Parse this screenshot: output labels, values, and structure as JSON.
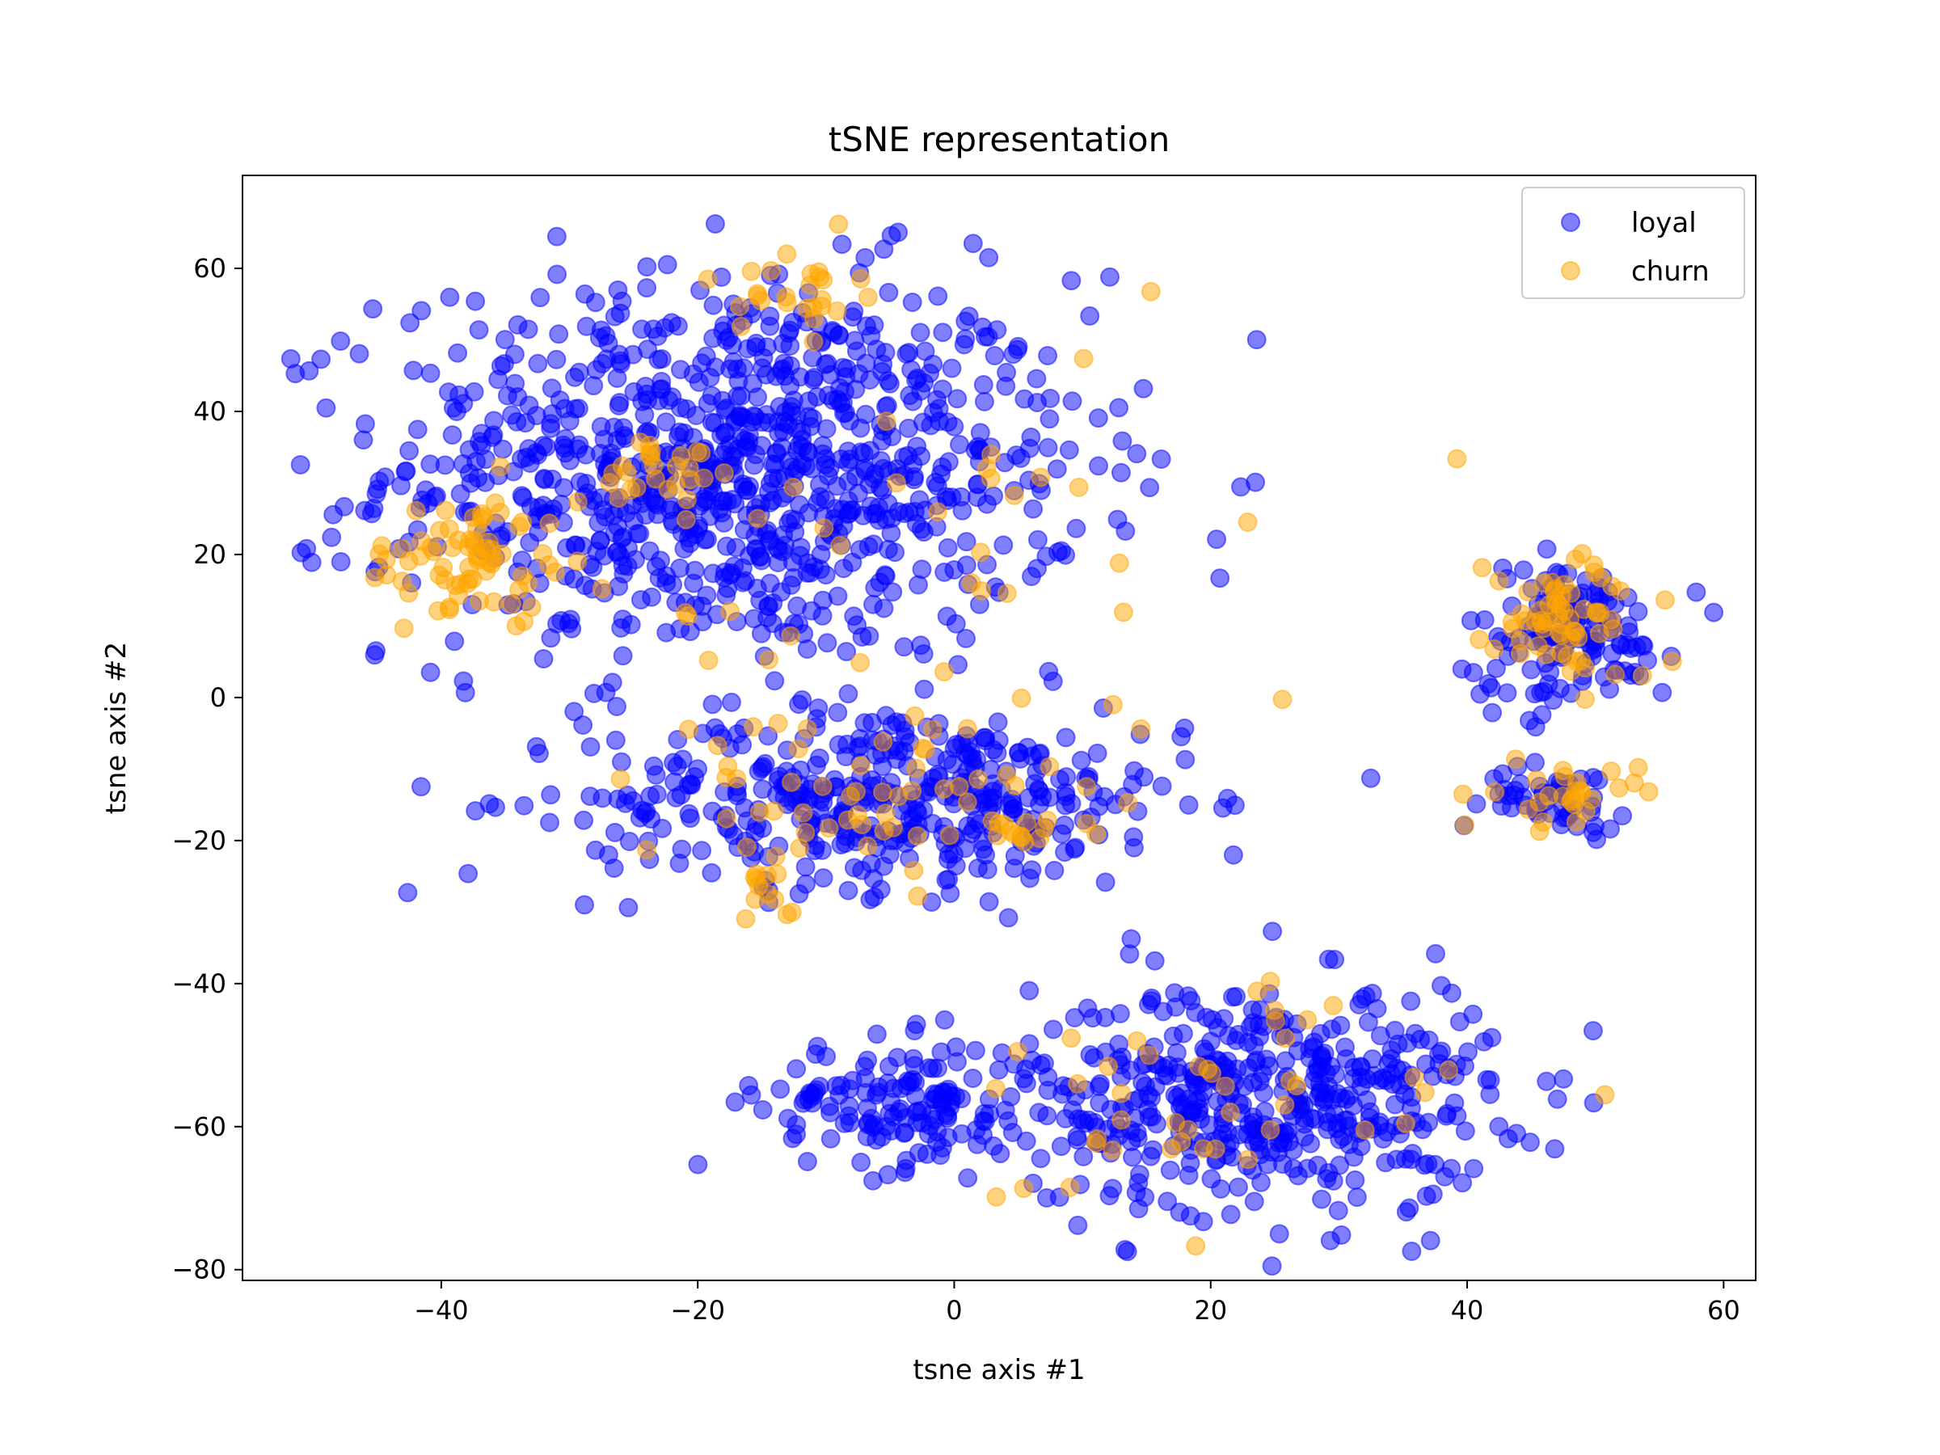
{
  "chart_data": {
    "type": "scatter",
    "title": "tSNE representation",
    "xlabel": "tsne axis #1",
    "ylabel": "tsne axis #2",
    "xlim": [
      -55.5,
      62.5
    ],
    "ylim": [
      -81.5,
      73
    ],
    "xticks": [
      -40,
      -20,
      0,
      20,
      40,
      60
    ],
    "yticks": [
      -80,
      -60,
      -40,
      -20,
      0,
      20,
      40,
      60
    ],
    "xtick_labels": [
      "−40",
      "−20",
      "0",
      "20",
      "40",
      "60"
    ],
    "ytick_labels": [
      "−80",
      "−60",
      "−40",
      "−20",
      "0",
      "20",
      "40",
      "60"
    ],
    "legend_position": "top-right",
    "grid": false,
    "series": [
      {
        "name": "loyal",
        "color": "#0000ff",
        "alpha": 0.5,
        "clusters": [
          {
            "cx": -17,
            "cy": 32,
            "sx": 15,
            "sy": 15,
            "n": 950
          },
          {
            "cx": -5,
            "cy": -14,
            "sx": 13,
            "sy": 7,
            "n": 420
          },
          {
            "cx": -4,
            "cy": -57,
            "sx": 6,
            "sy": 5,
            "n": 150
          },
          {
            "cx": 24,
            "cy": -56,
            "sx": 10,
            "sy": 9,
            "n": 480
          },
          {
            "cx": 48,
            "cy": 9,
            "sx": 4.5,
            "sy": 5.5,
            "n": 140
          },
          {
            "cx": 47,
            "cy": -14,
            "sx": 3,
            "sy": 2.5,
            "n": 50
          }
        ]
      },
      {
        "name": "churn",
        "color": "#ffa500",
        "alpha": 0.5,
        "clusters": [
          {
            "cx": -38,
            "cy": 19,
            "sx": 4.5,
            "sy": 5,
            "n": 70
          },
          {
            "cx": -22,
            "cy": 32,
            "sx": 3,
            "sy": 3,
            "n": 25
          },
          {
            "cx": -12,
            "cy": 57,
            "sx": 2.5,
            "sy": 3.5,
            "n": 25
          },
          {
            "cx": -7,
            "cy": -14,
            "sx": 10,
            "sy": 7,
            "n": 55
          },
          {
            "cx": 4,
            "cy": -19,
            "sx": 2,
            "sy": 1.5,
            "n": 12
          },
          {
            "cx": -15,
            "cy": -26,
            "sx": 2,
            "sy": 3,
            "n": 12
          },
          {
            "cx": 48,
            "cy": 11,
            "sx": 3.5,
            "sy": 5,
            "n": 65
          },
          {
            "cx": 48,
            "cy": -14,
            "sx": 3,
            "sy": 2.5,
            "n": 28
          },
          {
            "cx": 18,
            "cy": -57,
            "sx": 12,
            "sy": 9,
            "n": 45
          },
          {
            "cx": -5,
            "cy": 20,
            "sx": 22,
            "sy": 20,
            "n": 45
          }
        ]
      }
    ]
  }
}
